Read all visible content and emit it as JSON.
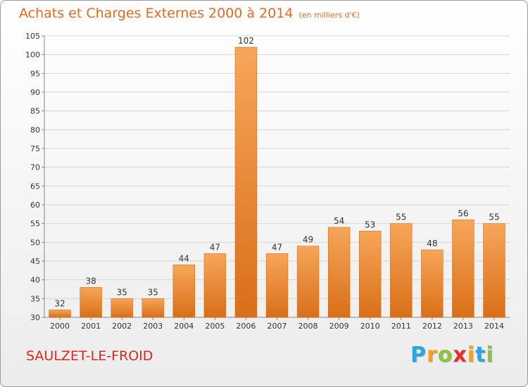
{
  "title": "Achats et Charges Externes 2000 à 2014",
  "subtitle": "(en milliers d'€)",
  "commune": "SAULZET-LE-FROID",
  "logo": {
    "letters": [
      "P",
      "r",
      "o",
      "x",
      "i",
      "t",
      "i"
    ],
    "colors": [
      "#2aa7e0",
      "#f7a21b",
      "#8cc63f",
      "#e4312b",
      "#f7a21b",
      "#2aa7e0",
      "#8cc63f"
    ]
  },
  "chart_data": {
    "type": "bar",
    "categories": [
      "2000",
      "2001",
      "2002",
      "2003",
      "2004",
      "2005",
      "2006",
      "2007",
      "2008",
      "2009",
      "2010",
      "2011",
      "2012",
      "2013",
      "2014"
    ],
    "values": [
      32,
      38,
      35,
      35,
      44,
      47,
      102,
      47,
      49,
      54,
      53,
      55,
      48,
      56,
      55
    ],
    "ylim": [
      30,
      105
    ],
    "yticks": [
      30,
      35,
      40,
      45,
      50,
      55,
      60,
      65,
      70,
      75,
      80,
      85,
      90,
      95,
      100,
      105
    ],
    "grid": true,
    "bar_color": "#ee8a32"
  }
}
